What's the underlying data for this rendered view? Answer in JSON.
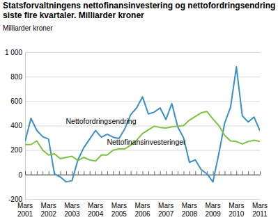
{
  "chart_data": {
    "type": "line",
    "title": "Statsforvaltningens nettofinansinvestering og nettofordringsendring siste fire kvartaler. Milliarder kroner",
    "y_label": "Milliarder kroner",
    "categories": [
      "Mars 2001",
      null,
      null,
      null,
      "Mars 2002",
      null,
      null,
      null,
      "Mars 2003",
      null,
      null,
      null,
      "Mars 2004",
      null,
      null,
      null,
      "Mars 2005",
      null,
      null,
      null,
      "Mars 2006",
      null,
      null,
      null,
      "Mars 2007",
      null,
      null,
      null,
      "Mars 2008",
      null,
      null,
      null,
      "Mars 2009",
      null,
      null,
      null,
      "Mars 2010",
      null,
      null,
      null,
      "Mars 2011"
    ],
    "series": [
      {
        "name": "Nettofordringsendring",
        "color": "#3a90c6",
        "values": [
          270,
          460,
          360,
          310,
          290,
          5,
          -20,
          -60,
          -50,
          120,
          220,
          290,
          360,
          305,
          330,
          305,
          295,
          375,
          490,
          545,
          635,
          495,
          510,
          545,
          450,
          580,
          390,
          300,
          100,
          120,
          40,
          5,
          -60,
          170,
          420,
          550,
          880,
          480,
          430,
          470,
          360
        ]
      },
      {
        "name": "Nettofinansinvesteringer",
        "color": "#7dc242",
        "values": [
          245,
          245,
          275,
          200,
          160,
          170,
          130,
          140,
          150,
          115,
          140,
          120,
          110,
          160,
          160,
          200,
          210,
          210,
          240,
          280,
          335,
          365,
          395,
          385,
          380,
          390,
          395,
          400,
          445,
          475,
          505,
          515,
          455,
          400,
          320,
          275,
          270,
          250,
          270,
          280,
          270
        ]
      }
    ],
    "ylim": [
      -200,
      1000
    ],
    "yticks": [
      -200,
      0,
      200,
      400,
      600,
      800,
      {
        "value": 1000,
        "label": "1 000"
      }
    ],
    "grid": true
  }
}
